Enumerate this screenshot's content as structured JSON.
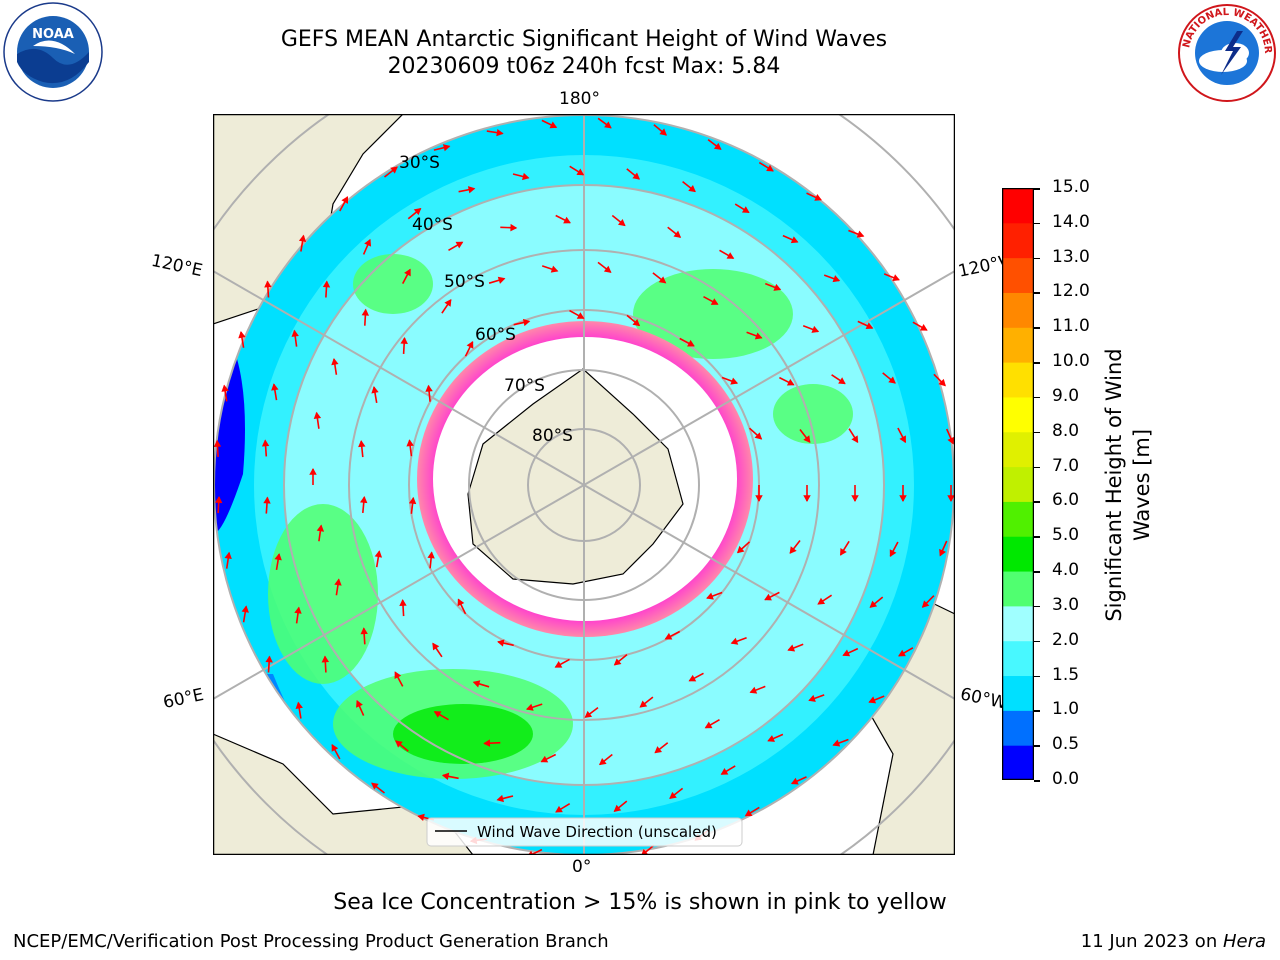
{
  "header": {
    "title_line1": "GEFS MEAN Antarctic Significant Height of Wind Waves",
    "title_line2": "20230609 t06z 240h fcst   Max: 5.84"
  },
  "logos": {
    "left": {
      "icon": "noaa-logo-icon",
      "text": "NOAA"
    },
    "right": {
      "icon": "nws-logo-icon",
      "text": "NATIONAL WEATHER SERVICE"
    }
  },
  "map": {
    "projection": "south-polar-stereographic",
    "longitude_labels": {
      "top": "180°",
      "bottom": "0°",
      "upper_left": "120°E",
      "upper_right": "120°W",
      "lower_left": "60°E",
      "lower_right": "60°W"
    },
    "latitude_labels": [
      "30°S",
      "40°S",
      "50°S",
      "60°S",
      "70°S",
      "80°S"
    ],
    "legend": "Wind Wave Direction (unscaled)",
    "arrow_color": "#ff0000",
    "land_color": "#eeecd8",
    "sea_ice_color": "#ff44cc"
  },
  "colorbar": {
    "label_line1": "Significant Height of Wind",
    "label_line2": "Waves [m]",
    "ticks": [
      "15.0",
      "14.0",
      "13.0",
      "12.0",
      "11.0",
      "10.0",
      "9.0",
      "8.0",
      "7.0",
      "6.0",
      "5.0",
      "4.0",
      "3.0",
      "2.0",
      "1.5",
      "1.0",
      "0.5",
      "0.0"
    ],
    "colors_bottom_to_top": [
      "#0000ff",
      "#0070ff",
      "#00e0ff",
      "#48f8ff",
      "#a0ffff",
      "#50ff70",
      "#00e800",
      "#50f000",
      "#c0f000",
      "#e0f000",
      "#ffff00",
      "#ffe000",
      "#ffb000",
      "#ff8800",
      "#ff5000",
      "#ff2000",
      "#ff0000"
    ]
  },
  "caption": "Sea Ice Concentration > 15% is shown in pink to yellow",
  "footer": {
    "left": "NCEP/EMC/Verification Post Processing Product Generation Branch",
    "right_date": "11 Jun 2023 on ",
    "right_host": "Hera"
  }
}
